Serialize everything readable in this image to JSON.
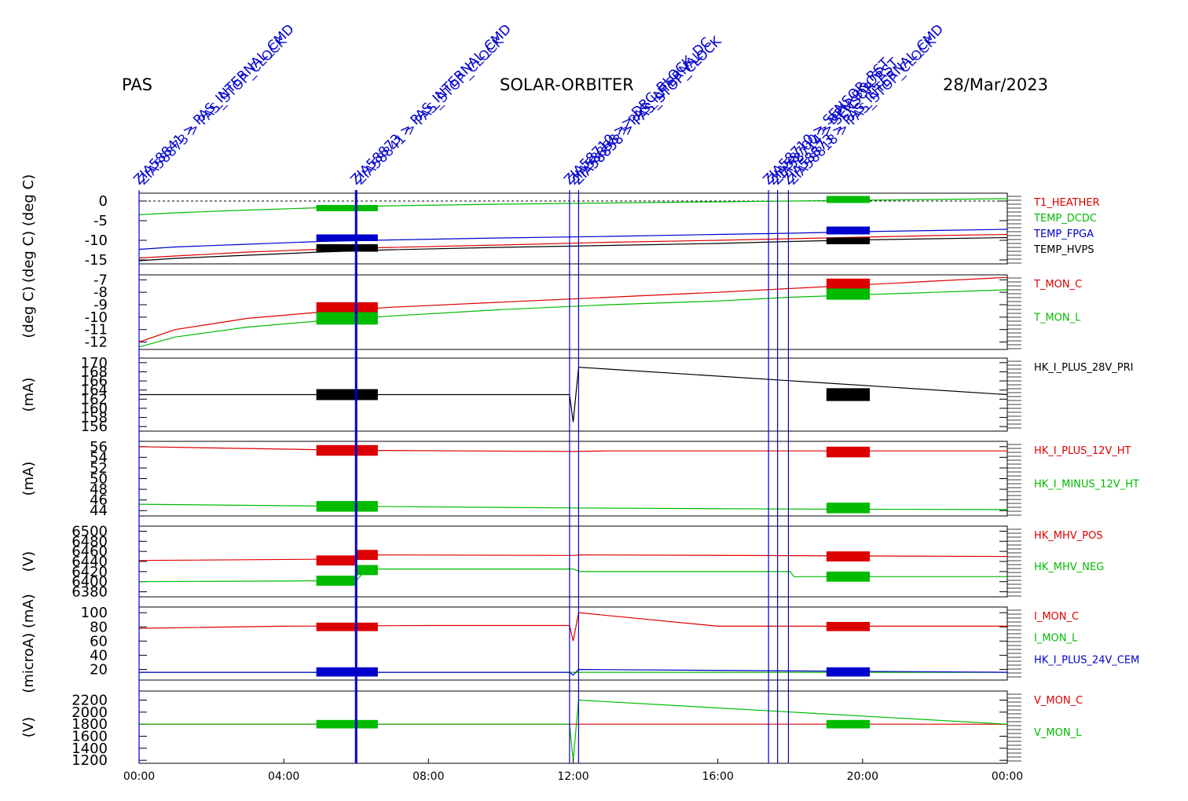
{
  "header": {
    "instrument": "PAS",
    "mission": "SOLAR-ORBITER",
    "date": "28/Mar/2023"
  },
  "colors": {
    "red": "#dd0000",
    "green": "#00bb00",
    "blue": "#0000cc",
    "black": "#000000",
    "event_blue": "#0000cc"
  },
  "events": [
    {
      "time_h": 0.0,
      "label": "ZIA58841 > PAS_INTERNAL_CMD",
      "label2": "ZIA58873 > PAS_STOP_CLOCK"
    },
    {
      "time_h": 6.0,
      "label": "ZIA58873 > PAS_INTERNAL_CMD",
      "label2": "ZIA58841 > PAS_STOP_CLOCK"
    },
    {
      "time_h": 11.9,
      "label": "ZIA58710 >> DRC_BLOCK_DC",
      "label2": "ZIA58858 > PAS_INTERNAL"
    },
    {
      "time_h": 12.15,
      "label": "ZIA58858 > PAS_STOP_CLOCK",
      "label2": ""
    },
    {
      "time_h": 17.4,
      "label": "ZIA58710 > SENSOR_RST",
      "label2": "ZIA58700 > DPU_BOOT"
    },
    {
      "time_h": 17.65,
      "label": "ZIA58714 > SENSOR_RST",
      "label2": ""
    },
    {
      "time_h": 17.95,
      "label": "ZIA58873 > PAS_INTERNAL_CMD",
      "label2": "ZIA58818 > PAS_STOP_CLOCK"
    }
  ],
  "chart_data": [
    {
      "type": "line",
      "ylabel": "(deg C)  (deg C)",
      "xlim": [
        0,
        24
      ],
      "ylim": [
        -16,
        2
      ],
      "yticks": [
        0,
        -5,
        -10,
        -15
      ],
      "ytick_labels": [
        "0",
        "-5",
        "-10",
        "-15"
      ],
      "zero_line": true,
      "series": [
        {
          "name": "T1_HEATHER",
          "color": "red",
          "x": [
            0,
            1,
            3,
            5,
            7,
            10,
            13,
            16,
            18,
            20,
            22,
            24
          ],
          "y": [
            -14.5,
            -14.0,
            -13.0,
            -12.3,
            -11.8,
            -11.2,
            -10.5,
            -10.0,
            -9.6,
            -9.2,
            -8.8,
            -8.5
          ]
        },
        {
          "name": "TEMP_DCDC",
          "color": "green",
          "x": [
            0,
            1,
            3,
            5,
            7,
            10,
            13,
            16,
            18,
            20,
            22,
            24
          ],
          "y": [
            -3.5,
            -3.0,
            -2.3,
            -1.7,
            -1.2,
            -0.8,
            -0.5,
            -0.2,
            0.0,
            0.2,
            0.4,
            0.6
          ]
        },
        {
          "name": "TEMP_FPGA",
          "color": "blue",
          "x": [
            0,
            1,
            3,
            5,
            7,
            10,
            13,
            16,
            18,
            20,
            22,
            24
          ],
          "y": [
            -12.3,
            -11.7,
            -11.0,
            -10.3,
            -9.9,
            -9.4,
            -9.0,
            -8.5,
            -8.2,
            -7.8,
            -7.5,
            -7.2
          ]
        },
        {
          "name": "TEMP_HVPS",
          "color": "black",
          "x": [
            0,
            1,
            3,
            5,
            7,
            10,
            13,
            16,
            18,
            20,
            22,
            24
          ],
          "y": [
            -15.2,
            -14.6,
            -13.8,
            -13.0,
            -12.4,
            -11.8,
            -11.3,
            -10.8,
            -10.3,
            -9.9,
            -9.6,
            -9.3
          ]
        }
      ],
      "blocks": [
        {
          "x": [
            4.9,
            6.6
          ],
          "y": [
            -1.0,
            -2.6
          ],
          "color": "green"
        },
        {
          "x": [
            4.9,
            6.6
          ],
          "y": [
            -8.5,
            -10.2
          ],
          "color": "blue"
        },
        {
          "x": [
            4.9,
            6.6
          ],
          "y": [
            -11.0,
            -12.9
          ],
          "color": "black"
        },
        {
          "x": [
            19.0,
            20.2
          ],
          "y": [
            1.3,
            -0.5
          ],
          "color": "green"
        },
        {
          "x": [
            19.0,
            20.2
          ],
          "y": [
            -6.5,
            -8.5
          ],
          "color": "blue"
        },
        {
          "x": [
            19.0,
            20.2
          ],
          "y": [
            -9.3,
            -11.0
          ],
          "color": "black"
        }
      ]
    },
    {
      "type": "line",
      "ylabel": "(deg C)",
      "xlim": [
        0,
        24
      ],
      "ylim": [
        -12.6,
        -6.6
      ],
      "yticks": [
        -7,
        -8,
        -9,
        -10,
        -11,
        -12
      ],
      "ytick_labels": [
        "-7",
        "-8",
        "-9",
        "-10",
        "-11",
        "-12"
      ],
      "series": [
        {
          "name": "T_MON_C",
          "color": "red",
          "x": [
            0,
            1,
            3,
            5,
            7,
            10,
            13,
            16,
            18,
            20,
            22,
            24
          ],
          "y": [
            -12.0,
            -11.0,
            -10.1,
            -9.6,
            -9.2,
            -8.8,
            -8.4,
            -8.0,
            -7.7,
            -7.4,
            -7.1,
            -6.8
          ]
        },
        {
          "name": "T_MON_L",
          "color": "green",
          "x": [
            0,
            1,
            3,
            5,
            7,
            10,
            13,
            16,
            18,
            20,
            22,
            24
          ],
          "y": [
            -12.4,
            -11.6,
            -10.8,
            -10.3,
            -9.9,
            -9.4,
            -9.0,
            -8.7,
            -8.4,
            -8.2,
            -8.0,
            -7.8
          ]
        }
      ],
      "blocks": [
        {
          "x": [
            4.9,
            6.6
          ],
          "y": [
            -8.8,
            -9.8
          ],
          "color": "red"
        },
        {
          "x": [
            4.9,
            6.6
          ],
          "y": [
            -9.6,
            -10.6
          ],
          "color": "green"
        },
        {
          "x": [
            19.0,
            20.2
          ],
          "y": [
            -6.9,
            -7.8
          ],
          "color": "red"
        },
        {
          "x": [
            19.0,
            20.2
          ],
          "y": [
            -7.7,
            -8.6
          ],
          "color": "green"
        }
      ]
    },
    {
      "type": "line",
      "ylabel": "(mA)",
      "xlim": [
        0,
        24
      ],
      "ylim": [
        155,
        171
      ],
      "yticks": [
        156,
        158,
        160,
        162,
        164,
        166,
        168,
        170
      ],
      "ytick_labels": [
        "156",
        "158",
        "160",
        "162",
        "164",
        "166",
        "168",
        "170"
      ],
      "series": [
        {
          "name": "HK_I_PLUS_28V_PRI",
          "color": "black",
          "x": [
            0,
            11.9,
            12.0,
            12.15,
            24
          ],
          "y": [
            163,
            163,
            157,
            169,
            163
          ]
        }
      ],
      "blocks": [
        {
          "x": [
            4.9,
            6.6
          ],
          "y": [
            164.2,
            161.8
          ],
          "color": "black"
        },
        {
          "x": [
            19.0,
            20.2
          ],
          "y": [
            164.4,
            161.6
          ],
          "color": "black"
        }
      ]
    },
    {
      "type": "line",
      "ylabel": "(mA)",
      "xlim": [
        0,
        24
      ],
      "ylim": [
        43,
        57
      ],
      "yticks": [
        44,
        46,
        48,
        50,
        52,
        54,
        56
      ],
      "ytick_labels": [
        "44",
        "46",
        "48",
        "50",
        "52",
        "54",
        "56"
      ],
      "series": [
        {
          "name": "HK_I_PLUS_12V_HT",
          "color": "red",
          "x": [
            0,
            6,
            12,
            13,
            24
          ],
          "y": [
            56.0,
            55.3,
            55.1,
            55.2,
            55.2
          ]
        },
        {
          "name": "HK_I_MINUS_12V_HT",
          "color": "green",
          "x": [
            0,
            6,
            12,
            18,
            24
          ],
          "y": [
            45.2,
            44.8,
            44.5,
            44.3,
            44.2
          ]
        }
      ],
      "blocks": [
        {
          "x": [
            4.9,
            6.6
          ],
          "y": [
            56.3,
            54.3
          ],
          "color": "red"
        },
        {
          "x": [
            4.9,
            6.6
          ],
          "y": [
            45.8,
            43.8
          ],
          "color": "green"
        },
        {
          "x": [
            19.0,
            20.2
          ],
          "y": [
            56.0,
            54.0
          ],
          "color": "red"
        },
        {
          "x": [
            19.0,
            20.2
          ],
          "y": [
            45.5,
            43.5
          ],
          "color": "green"
        }
      ]
    },
    {
      "type": "line",
      "ylabel": "(V)",
      "xlim": [
        0,
        24
      ],
      "ylim": [
        6370,
        6510
      ],
      "yticks": [
        6500,
        6480,
        6460,
        6440,
        6420,
        6400,
        6380
      ],
      "ytick_labels": [
        "6500",
        "6480",
        "6460",
        "6440",
        "6420",
        "6400",
        "6380"
      ],
      "series": [
        {
          "name": "HK_MHV_POS",
          "color": "red",
          "x": [
            0,
            6,
            6.3,
            12,
            12.2,
            24
          ],
          "y": [
            6442,
            6445,
            6453,
            6452,
            6453,
            6450
          ]
        },
        {
          "name": "HK_MHV_NEG",
          "color": "green",
          "x": [
            0,
            6,
            6.3,
            12,
            12.2,
            18,
            18.1,
            24
          ],
          "y": [
            6400,
            6402,
            6425,
            6425,
            6420,
            6420,
            6410,
            6410
          ]
        }
      ],
      "blocks": [
        {
          "x": [
            4.9,
            6.0
          ],
          "y": [
            6452,
            6432
          ],
          "color": "red"
        },
        {
          "x": [
            4.9,
            6.0
          ],
          "y": [
            6412,
            6392
          ],
          "color": "green"
        },
        {
          "x": [
            6.0,
            6.6
          ],
          "y": [
            6463,
            6443
          ],
          "color": "red"
        },
        {
          "x": [
            6.0,
            6.6
          ],
          "y": [
            6433,
            6413
          ],
          "color": "green"
        },
        {
          "x": [
            19.0,
            20.2
          ],
          "y": [
            6460,
            6440
          ],
          "color": "red"
        },
        {
          "x": [
            19.0,
            20.2
          ],
          "y": [
            6420,
            6400
          ],
          "color": "green"
        }
      ]
    },
    {
      "type": "line",
      "ylabel": "(microA) (mA)",
      "xlim": [
        0,
        24
      ],
      "ylim": [
        5,
        108
      ],
      "yticks": [
        100,
        80,
        60,
        40,
        20
      ],
      "ytick_labels": [
        "100",
        "80",
        "60",
        "40",
        "20"
      ],
      "series": [
        {
          "name": "I_MON_C",
          "color": "red",
          "x": [
            0,
            4,
            8,
            11.9,
            12.0,
            12.15,
            16,
            24
          ],
          "y": [
            78,
            81,
            82,
            82,
            60,
            100,
            81,
            81
          ]
        },
        {
          "name": "I_MON_L",
          "color": "green",
          "x": [
            0,
            24
          ],
          "y": [
            16,
            16
          ]
        },
        {
          "name": "HK_I_PLUS_24V_CEM",
          "color": "blue",
          "x": [
            0,
            11.9,
            12.0,
            12.15,
            24
          ],
          "y": [
            16,
            16,
            12,
            20,
            16
          ]
        }
      ],
      "blocks": [
        {
          "x": [
            4.9,
            6.6
          ],
          "y": [
            86,
            74
          ],
          "color": "red"
        },
        {
          "x": [
            4.9,
            6.6
          ],
          "y": [
            23,
            10
          ],
          "color": "blue"
        },
        {
          "x": [
            19.0,
            20.2
          ],
          "y": [
            87,
            74
          ],
          "color": "red"
        },
        {
          "x": [
            19.0,
            20.2
          ],
          "y": [
            23,
            10
          ],
          "color": "blue"
        }
      ]
    },
    {
      "type": "line",
      "ylabel": "(V)",
      "xlim": [
        0,
        24
      ],
      "ylim": [
        1150,
        2350
      ],
      "yticks": [
        2200,
        2000,
        1800,
        1600,
        1400,
        1200
      ],
      "ytick_labels": [
        "2200",
        "2000",
        "1800",
        "1600",
        "1400",
        "1200"
      ],
      "series": [
        {
          "name": "V_MON_C",
          "color": "red",
          "x": [
            0,
            24
          ],
          "y": [
            1800,
            1800
          ]
        },
        {
          "name": "V_MON_L",
          "color": "green",
          "x": [
            0,
            11.9,
            12.0,
            12.15,
            24
          ],
          "y": [
            1800,
            1800,
            1200,
            2200,
            1800
          ]
        }
      ],
      "blocks": [
        {
          "x": [
            4.9,
            6.6
          ],
          "y": [
            1870,
            1730
          ],
          "color": "green"
        },
        {
          "x": [
            19.0,
            20.2
          ],
          "y": [
            1870,
            1730
          ],
          "color": "green"
        }
      ]
    }
  ],
  "x_axis": {
    "ticks_h": [
      0,
      4,
      8,
      12,
      16,
      20,
      24
    ],
    "tick_labels": [
      "00:00",
      "04:00",
      "08:00",
      "12:00",
      "16:00",
      "20:00",
      "00:00"
    ]
  }
}
